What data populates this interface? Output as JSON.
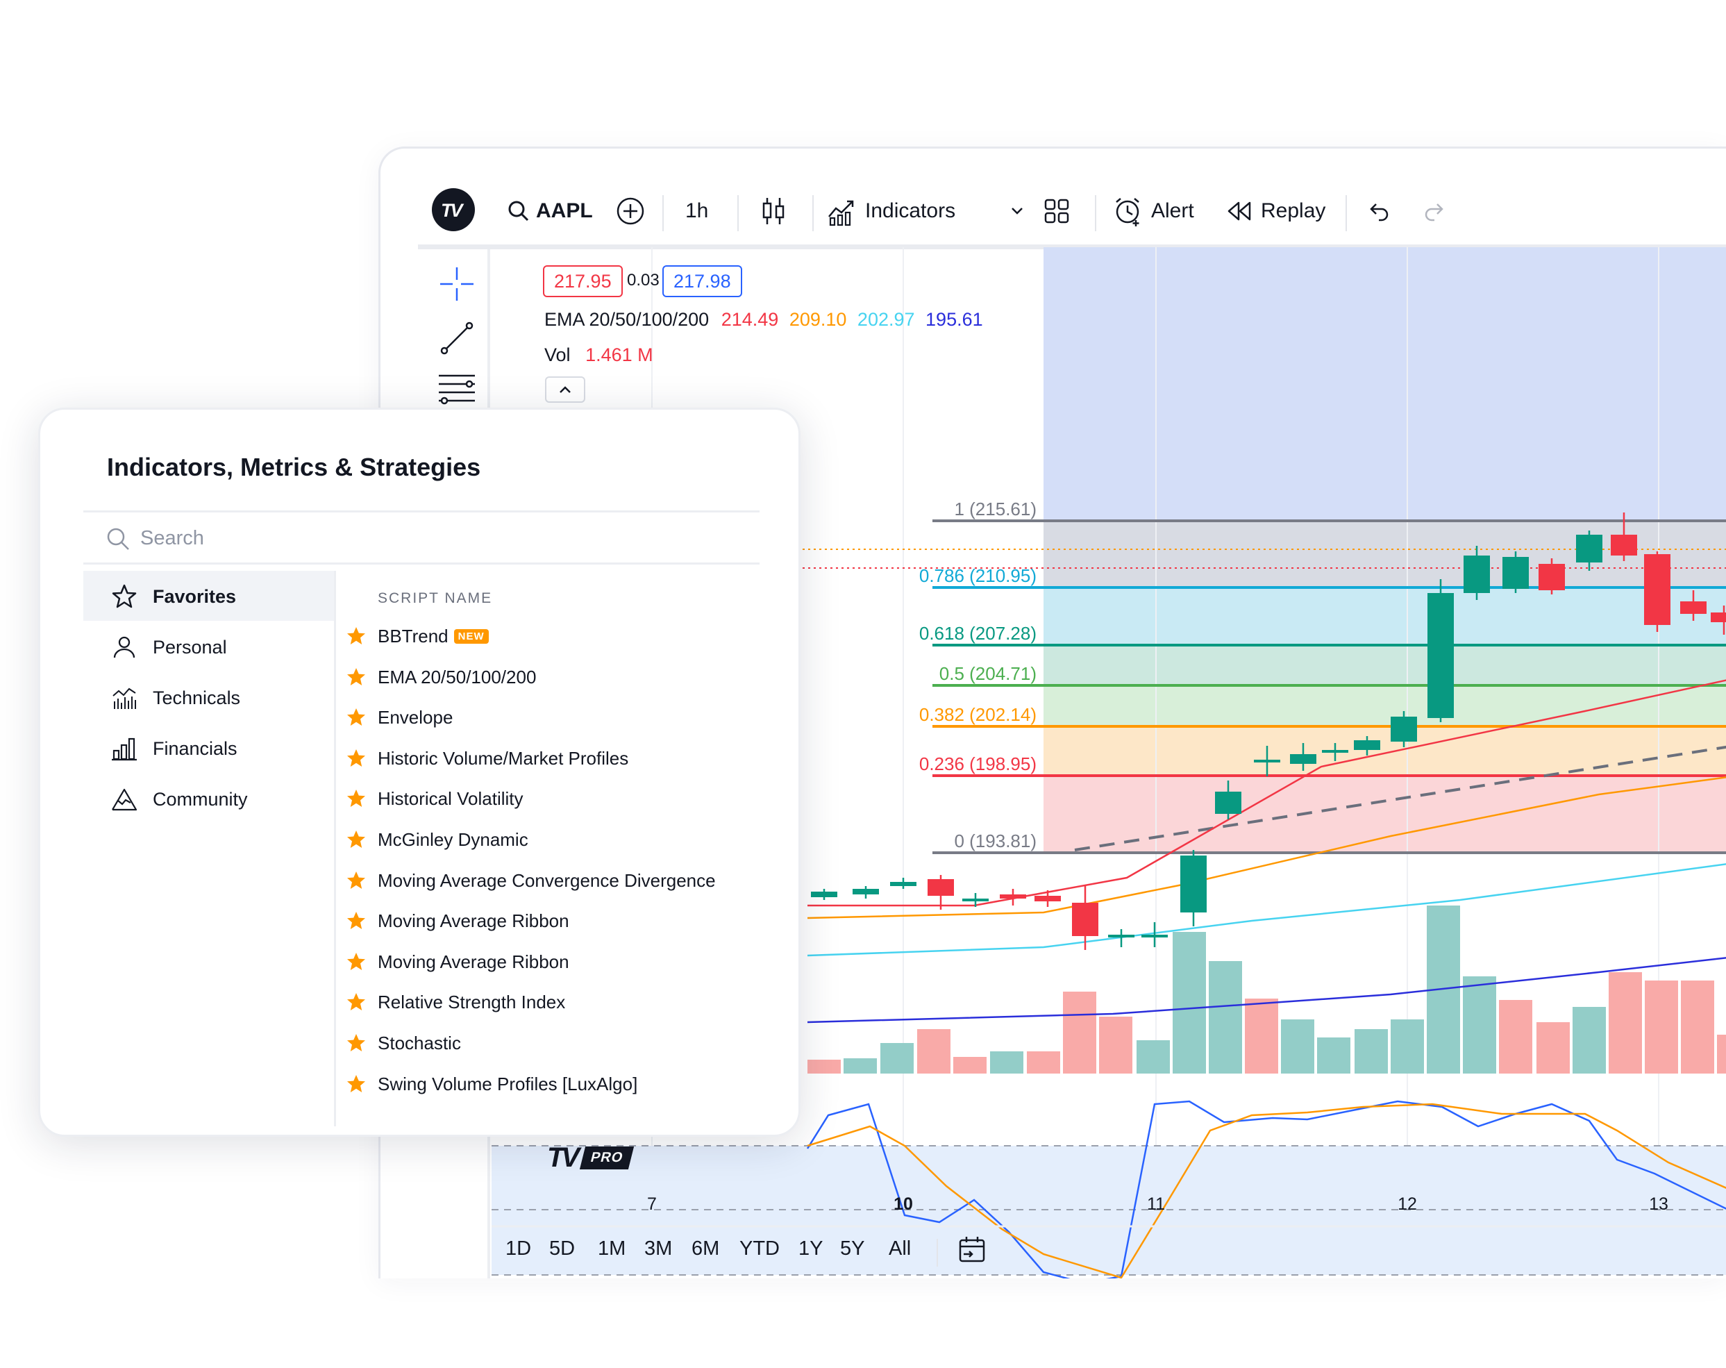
{
  "toolbar": {
    "symbol": "AAPL",
    "interval": "1h",
    "indicators_label": "Indicators",
    "alert_label": "Alert",
    "replay_label": "Replay"
  },
  "legend": {
    "bid": "217.95",
    "spread": "0.03",
    "ask": "217.98",
    "ema_label": "EMA 20/50/100/200",
    "ema_values": [
      "214.49",
      "209.10",
      "202.97",
      "195.61"
    ],
    "ema_colors": [
      "#f23645",
      "#ff9800",
      "#47d3f0",
      "#2a2edb"
    ],
    "vol_label": "Vol",
    "vol_value": "1.461 M"
  },
  "fib_levels": [
    {
      "label": "1 (215.61)",
      "color": "#787b86"
    },
    {
      "label": "0.786 (210.95)",
      "color": "#11a9d6"
    },
    {
      "label": "0.618 (207.28)",
      "color": "#089981"
    },
    {
      "label": "0.5 (204.71)",
      "color": "#4caf50"
    },
    {
      "label": "0.382 (202.14)",
      "color": "#ff9800"
    },
    {
      "label": "0.236 (198.95)",
      "color": "#f23645"
    },
    {
      "label": "0 (193.81)",
      "color": "#787b86"
    }
  ],
  "x_ticks": [
    "7",
    "10",
    "11",
    "12",
    "13"
  ],
  "ranges": [
    "1D",
    "5D",
    "1M",
    "3M",
    "6M",
    "YTD",
    "1Y",
    "5Y",
    "All"
  ],
  "watermark": "PRO",
  "dialog": {
    "title": "Indicators, Metrics & Strategies",
    "search_placeholder": "Search",
    "categories": [
      "Favorites",
      "Personal",
      "Technicals",
      "Financials",
      "Community"
    ],
    "column_header": "SCRIPT NAME",
    "new_badge": "NEW",
    "scripts": [
      "BBTrend",
      "EMA 20/50/100/200",
      "Envelope",
      "Historic Volume/Market Profiles",
      "Historical Volatility",
      "McGinley Dynamic",
      "Moving Average Convergence Divergence",
      "Moving Average Ribbon",
      "Moving Average Ribbon",
      "Relative Strength Index",
      "Stochastic",
      "Swing Volume Profiles [LuxAlgo]"
    ]
  },
  "colors": {
    "up": "#089981",
    "down": "#f23645",
    "accent": "#2962ff",
    "star": "#ff9800"
  }
}
